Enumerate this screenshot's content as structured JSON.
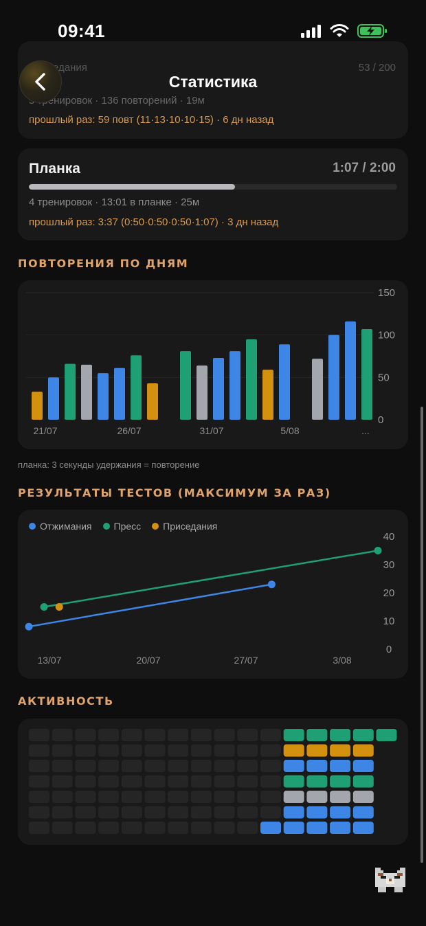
{
  "status_bar": {
    "time": "09:41"
  },
  "header": {
    "title": "Статистика"
  },
  "faded_card": {
    "line1": "Приседания",
    "line1_score": "53 / 200",
    "line2": "5 тренировок · 136 повторений · 19м",
    "prev": "прошлый раз: 59 повт (11·13·10·10·15) · 6 дн назад"
  },
  "plank_card": {
    "name": "Планка",
    "score": "1:07 / 2:00",
    "progress": 0.56,
    "stats": "4 тренировок · 13:01 в планке · 25м",
    "prev": "прошлый раз: 3:37 (0:50·0:50·0:50·1:07) · 3 дн назад"
  },
  "sections": {
    "reps_by_day": "ПОВТОРЕНИЯ ПО ДНЯМ",
    "plank_note": "планка: 3 секунды удержания = повторение",
    "test_results": "РЕЗУЛЬТАТЫ ТЕСТОВ (МАКСИМУМ ЗА РАЗ)",
    "activity": "АКТИВНОСТЬ"
  },
  "colors": {
    "pushups": "#3d86e6",
    "abs": "#1fa074",
    "squats": "#d4900f",
    "plank": "#a4a6ae",
    "empty": "#252525"
  },
  "chart_data": [
    {
      "type": "bar",
      "title": "ПОВТОРЕНИЯ ПО ДНЯМ",
      "x_tick_labels": [
        "21/07",
        "26/07",
        "31/07",
        "5/08",
        "..."
      ],
      "ylim": [
        0,
        150
      ],
      "y_ticks": [
        0,
        50,
        100,
        150
      ],
      "grid": true,
      "bars": [
        {
          "value": 33,
          "category": "squats"
        },
        {
          "value": 50,
          "category": "pushups"
        },
        {
          "value": 66,
          "category": "abs"
        },
        {
          "value": 65,
          "category": "plank"
        },
        {
          "value": 55,
          "category": "pushups"
        },
        {
          "value": 61,
          "category": "pushups"
        },
        {
          "value": 76,
          "category": "abs"
        },
        {
          "value": 43,
          "category": "squats"
        },
        {
          "value": null,
          "category": null
        },
        {
          "value": 81,
          "category": "abs"
        },
        {
          "value": 64,
          "category": "plank"
        },
        {
          "value": 73,
          "category": "pushups"
        },
        {
          "value": 81,
          "category": "pushups"
        },
        {
          "value": 95,
          "category": "abs"
        },
        {
          "value": 59,
          "category": "squats"
        },
        {
          "value": 89,
          "category": "pushups"
        },
        {
          "value": null,
          "category": null
        },
        {
          "value": 72,
          "category": "plank"
        },
        {
          "value": 100,
          "category": "pushups"
        },
        {
          "value": 116,
          "category": "pushups"
        },
        {
          "value": 107,
          "category": "abs"
        }
      ]
    },
    {
      "type": "line",
      "title": "РЕЗУЛЬТАТЫ ТЕСТОВ (МАКСИМУМ ЗА РАЗ)",
      "x_tick_labels": [
        "13/07",
        "20/07",
        "27/07",
        "3/08"
      ],
      "xlim": [
        "2025-07-13",
        "2025-08-05"
      ],
      "ylim": [
        0,
        40
      ],
      "y_ticks": [
        0,
        10,
        20,
        30,
        40
      ],
      "legend_position": "top-left",
      "series": [
        {
          "name": "Отжимания",
          "color_key": "pushups",
          "points": [
            {
              "x": "2025-07-13",
              "y": 8
            },
            {
              "x": "2025-07-29",
              "y": 23
            }
          ]
        },
        {
          "name": "Пресс",
          "color_key": "abs",
          "points": [
            {
              "x": "2025-07-14",
              "y": 15
            },
            {
              "x": "2025-08-05",
              "y": 35
            }
          ]
        },
        {
          "name": "Приседания",
          "color_key": "squats",
          "points": [
            {
              "x": "2025-07-15",
              "y": 15
            }
          ]
        }
      ]
    }
  ],
  "activity_grid": {
    "rows": [
      [
        "empty",
        "empty",
        "empty",
        "empty",
        "empty",
        "empty",
        "empty",
        "empty",
        "empty",
        "empty",
        "empty",
        "abs",
        "abs",
        "abs",
        "abs",
        "abs"
      ],
      [
        "empty",
        "empty",
        "empty",
        "empty",
        "empty",
        "empty",
        "empty",
        "empty",
        "empty",
        "empty",
        "empty",
        "squats",
        "squats",
        "squats",
        "squats",
        null
      ],
      [
        "empty",
        "empty",
        "empty",
        "empty",
        "empty",
        "empty",
        "empty",
        "empty",
        "empty",
        "empty",
        "empty",
        "pushups",
        "pushups",
        "pushups",
        "pushups",
        null
      ],
      [
        "empty",
        "empty",
        "empty",
        "empty",
        "empty",
        "empty",
        "empty",
        "empty",
        "empty",
        "empty",
        "empty",
        "abs",
        "abs",
        "abs",
        "abs",
        null
      ],
      [
        "empty",
        "empty",
        "empty",
        "empty",
        "empty",
        "empty",
        "empty",
        "empty",
        "empty",
        "empty",
        "empty",
        "plank",
        "plank",
        "plank",
        "plank",
        null
      ],
      [
        "empty",
        "empty",
        "empty",
        "empty",
        "empty",
        "empty",
        "empty",
        "empty",
        "empty",
        "empty",
        "empty",
        "pushups",
        "pushups",
        "pushups",
        "pushups",
        null
      ],
      [
        "empty",
        "empty",
        "empty",
        "empty",
        "empty",
        "empty",
        "empty",
        "empty",
        "empty",
        "empty",
        "pushups",
        "pushups",
        "pushups",
        "pushups",
        "pushups",
        null
      ]
    ]
  },
  "icons": {
    "back": "chevron-left-icon",
    "signal": "signal-icon",
    "wifi": "wifi-icon",
    "battery": "battery-charging-icon",
    "mascot": "pixel-cat-icon"
  }
}
